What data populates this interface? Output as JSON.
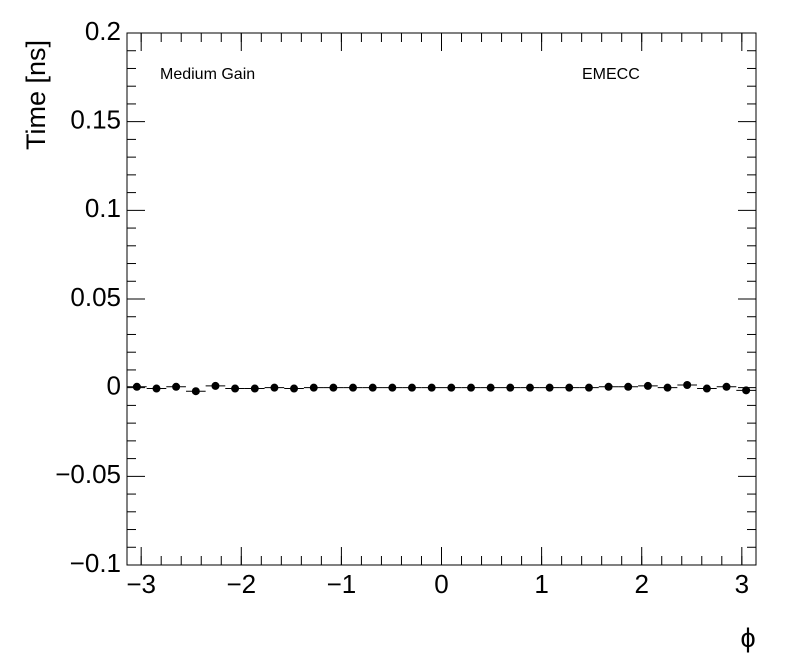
{
  "chart_data": {
    "type": "scatter",
    "y_label": "Time [ns]",
    "x_label": "ϕ",
    "annotations": [
      "Medium Gain",
      "EMECC"
    ],
    "x": [
      -3.043,
      -2.847,
      -2.651,
      -2.454,
      -2.258,
      -2.062,
      -1.865,
      -1.669,
      -1.473,
      -1.276,
      -1.08,
      -0.884,
      -0.687,
      -0.491,
      -0.295,
      -0.098,
      0.098,
      0.295,
      0.491,
      0.687,
      0.884,
      1.08,
      1.276,
      1.473,
      1.669,
      1.865,
      2.062,
      2.258,
      2.454,
      2.651,
      2.847,
      3.043
    ],
    "values": [
      0.0005,
      -0.0005,
      0.0005,
      -0.002,
      0.001,
      -0.0005,
      -0.0005,
      0.0,
      -0.0005,
      0.0,
      0.0,
      0.0,
      0.0,
      0.0,
      0.0,
      0.0,
      0.0,
      0.0,
      0.0,
      0.0,
      0.0,
      0.0,
      0.0,
      0.0,
      0.0005,
      0.0005,
      0.001,
      0.0,
      0.0015,
      -0.0005,
      0.0005,
      -0.0015
    ],
    "xerr": 0.098,
    "color": "#000000",
    "xlim": [
      -3.1416,
      3.1416
    ],
    "ylim": [
      -0.1,
      0.2
    ],
    "xticks": [
      {
        "value": -3,
        "label": "−3"
      },
      {
        "value": -2,
        "label": "−2"
      },
      {
        "value": -1,
        "label": "−1"
      },
      0,
      1,
      2,
      3
    ],
    "yticks": [
      {
        "value": -0.1,
        "label": "−0.1"
      },
      {
        "value": -0.05,
        "label": "−0.05"
      },
      0,
      0.05,
      0.1,
      0.15,
      0.2
    ]
  }
}
